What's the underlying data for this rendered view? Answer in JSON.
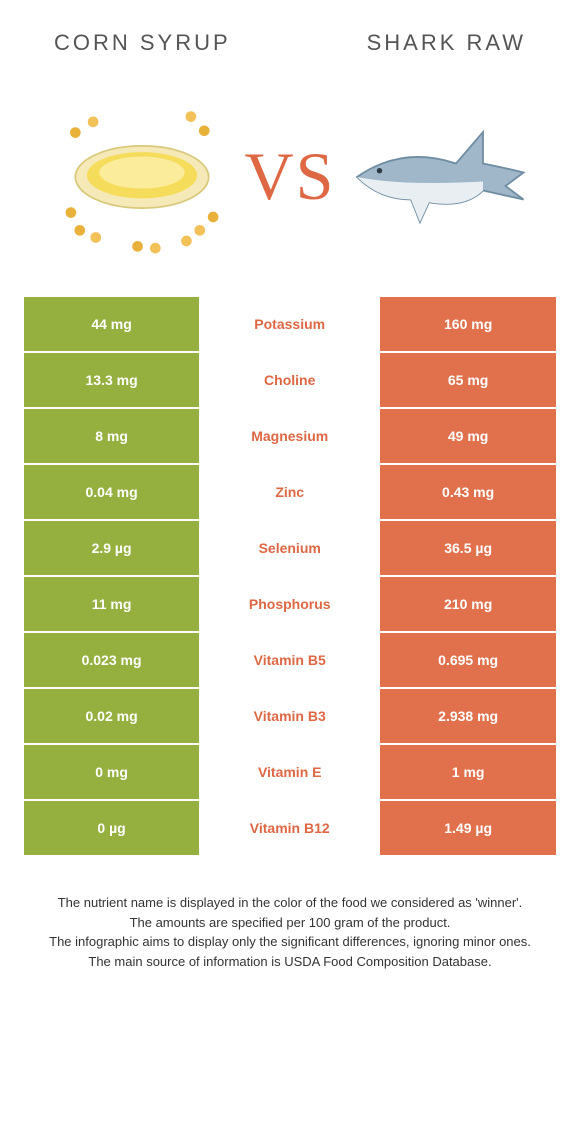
{
  "colors": {
    "left": "#96b03f",
    "right": "#e1714d",
    "nutrient_text": "#dd6843",
    "vs_text": "#dd6843",
    "header_text": "#555555"
  },
  "header": {
    "left_title": "Corn syrup",
    "right_title": "Shark raw",
    "vs": "VS"
  },
  "rows": [
    {
      "left": "44 mg",
      "nutrient": "Potassium",
      "right": "160 mg"
    },
    {
      "left": "13.3 mg",
      "nutrient": "Choline",
      "right": "65 mg"
    },
    {
      "left": "8 mg",
      "nutrient": "Magnesium",
      "right": "49 mg"
    },
    {
      "left": "0.04 mg",
      "nutrient": "Zinc",
      "right": "0.43 mg"
    },
    {
      "left": "2.9 µg",
      "nutrient": "Selenium",
      "right": "36.5 µg"
    },
    {
      "left": "11 mg",
      "nutrient": "Phosphorus",
      "right": "210 mg"
    },
    {
      "left": "0.023 mg",
      "nutrient": "Vitamin B5",
      "right": "0.695 mg"
    },
    {
      "left": "0.02 mg",
      "nutrient": "Vitamin B3",
      "right": "2.938 mg"
    },
    {
      "left": "0 mg",
      "nutrient": "Vitamin E",
      "right": "1 mg"
    },
    {
      "left": "0 µg",
      "nutrient": "Vitamin B12",
      "right": "1.49 µg"
    }
  ],
  "footer": {
    "line1": "The nutrient name is displayed in the color of the food we considered as 'winner'.",
    "line2": "The amounts are specified per 100 gram of the product.",
    "line3": "The infographic aims to display only the significant differences, ignoring minor ones.",
    "line4": "The main source of information is USDA Food Composition Database."
  }
}
